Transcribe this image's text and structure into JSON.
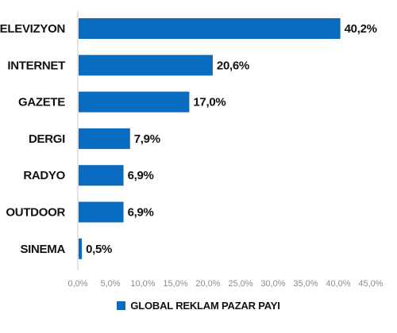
{
  "colors": {
    "bar": "#0a6cc0",
    "axis": "#c8c8c8",
    "text": "#111111",
    "tick_text": "#8c8c8c"
  },
  "chart_data": {
    "type": "bar",
    "orientation": "horizontal",
    "categories": [
      "TELEVIZYON",
      "INTERNET",
      "GAZETE",
      "DERGI",
      "RADYO",
      "OUTDOOR",
      "SINEMA"
    ],
    "series": [
      {
        "name": "GLOBAL REKLAM PAZAR PAYI",
        "values": [
          40.2,
          20.6,
          17.0,
          7.9,
          6.9,
          6.9,
          0.5
        ],
        "value_labels": [
          "40,2%",
          "20,6%",
          "17,0%",
          "7,9%",
          "6,9%",
          "6,9%",
          "0,5%"
        ]
      }
    ],
    "x_ticks": [
      0,
      5,
      10,
      15,
      20,
      25,
      30,
      35,
      40,
      45
    ],
    "x_tick_labels": [
      "0,0%",
      "5,0%",
      "10,0%",
      "15,0%",
      "20,0%",
      "25,0%",
      "30,0%",
      "35,0%",
      "40,0%",
      "45,0%"
    ],
    "xlim": [
      0,
      45
    ],
    "title": "",
    "xlabel": "",
    "ylabel": "",
    "grid": false,
    "legend_position": "bottom-center"
  }
}
